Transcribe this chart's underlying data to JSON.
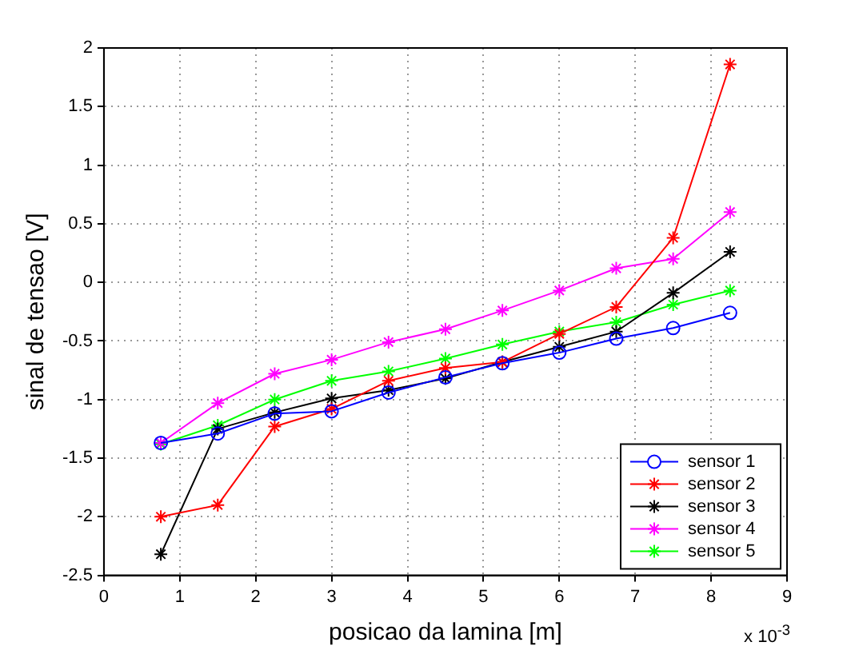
{
  "chart_data": {
    "type": "line",
    "xlabel": "posicao da lamina [m]",
    "ylabel": "sinal de tensao [V]",
    "x": [
      0.75,
      1.5,
      2.25,
      3,
      3.75,
      4.5,
      5.25,
      6,
      6.75,
      7.5,
      8.25
    ],
    "series": [
      {
        "name": "sensor 1",
        "color": "#0000ff",
        "marker": "circle",
        "values": [
          -1.37,
          -1.29,
          -1.12,
          -1.1,
          -0.94,
          -0.81,
          -0.69,
          -0.6,
          -0.48,
          -0.39,
          -0.26
        ]
      },
      {
        "name": "sensor 2",
        "color": "#ff0000",
        "marker": "cross",
        "values": [
          -2.0,
          -1.9,
          -1.23,
          -1.08,
          -0.84,
          -0.73,
          -0.68,
          -0.44,
          -0.21,
          0.38,
          1.86
        ]
      },
      {
        "name": "sensor 3",
        "color": "#000000",
        "marker": "cross",
        "values": [
          -2.32,
          -1.25,
          -1.11,
          -0.99,
          -0.92,
          -0.82,
          -0.68,
          -0.55,
          -0.42,
          -0.09,
          0.26
        ]
      },
      {
        "name": "sensor 4",
        "color": "#ff00ff",
        "marker": "cross",
        "values": [
          -1.37,
          -1.03,
          -0.78,
          -0.66,
          -0.51,
          -0.4,
          -0.24,
          -0.07,
          0.12,
          0.2,
          0.6
        ]
      },
      {
        "name": "sensor 5",
        "color": "#00ff00",
        "marker": "cross",
        "values": [
          -1.38,
          -1.22,
          -1.0,
          -0.84,
          -0.76,
          -0.65,
          -0.53,
          -0.42,
          -0.34,
          -0.19,
          -0.07
        ]
      }
    ],
    "xlim": [
      0,
      9
    ],
    "xticks": [
      0,
      1,
      2,
      3,
      4,
      5,
      6,
      7,
      8,
      9
    ],
    "ylim": [
      -2.5,
      2
    ],
    "yticks": [
      -2.5,
      -2,
      -1.5,
      -1,
      -0.5,
      0,
      0.5,
      1,
      1.5,
      2
    ],
    "annotations": [
      "x 10$^{-3}$"
    ],
    "grid": true,
    "legend": "bottom right",
    "line_style": "solid"
  }
}
